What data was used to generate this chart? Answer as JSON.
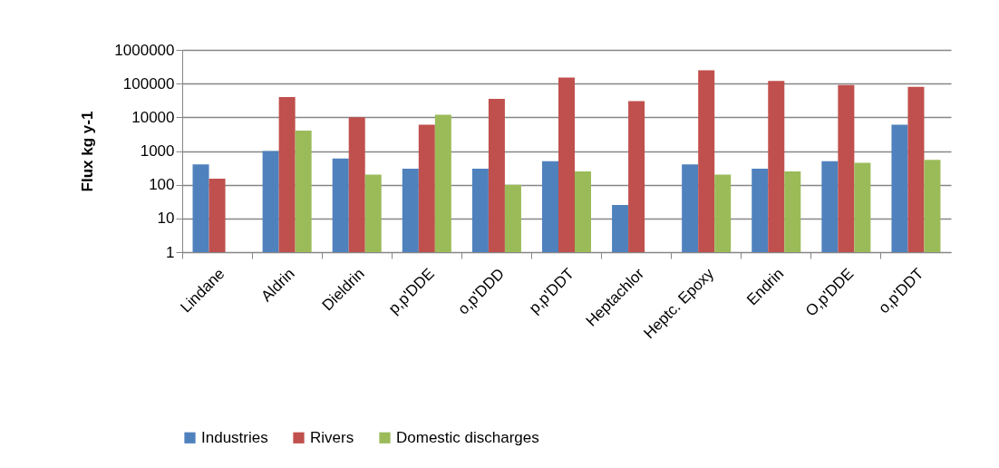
{
  "chart_data": {
    "type": "bar",
    "ylabel": "Flux kg y-1",
    "categories": [
      "Lindane",
      "Aldrin",
      "Dieldrin",
      "p,p'DDE",
      "o,p'DDD",
      "p,p'DDT",
      "Heptachlor",
      "Heptc. Epoxy",
      "Endrin",
      "O,p'DDE",
      "o,p'DDT"
    ],
    "series": [
      {
        "name": "Industries",
        "color": "#4f81bd",
        "values": [
          400,
          1000,
          600,
          300,
          300,
          500,
          25,
          400,
          300,
          500,
          6000
        ]
      },
      {
        "name": "Rivers",
        "color": "#c0504d",
        "values": [
          150,
          40000,
          10000,
          6000,
          35000,
          150000,
          30000,
          250000,
          120000,
          90000,
          80000
        ]
      },
      {
        "name": "Domestic discharges",
        "color": "#9bbb59",
        "values": [
          null,
          4000,
          200,
          12000,
          100,
          250,
          null,
          200,
          250,
          450,
          550
        ]
      }
    ],
    "log": true,
    "ylim": [
      1,
      1000000
    ],
    "yticks": [
      1,
      10,
      100,
      1000,
      10000,
      100000,
      1000000
    ],
    "grid": "y",
    "legend": "bottom"
  }
}
